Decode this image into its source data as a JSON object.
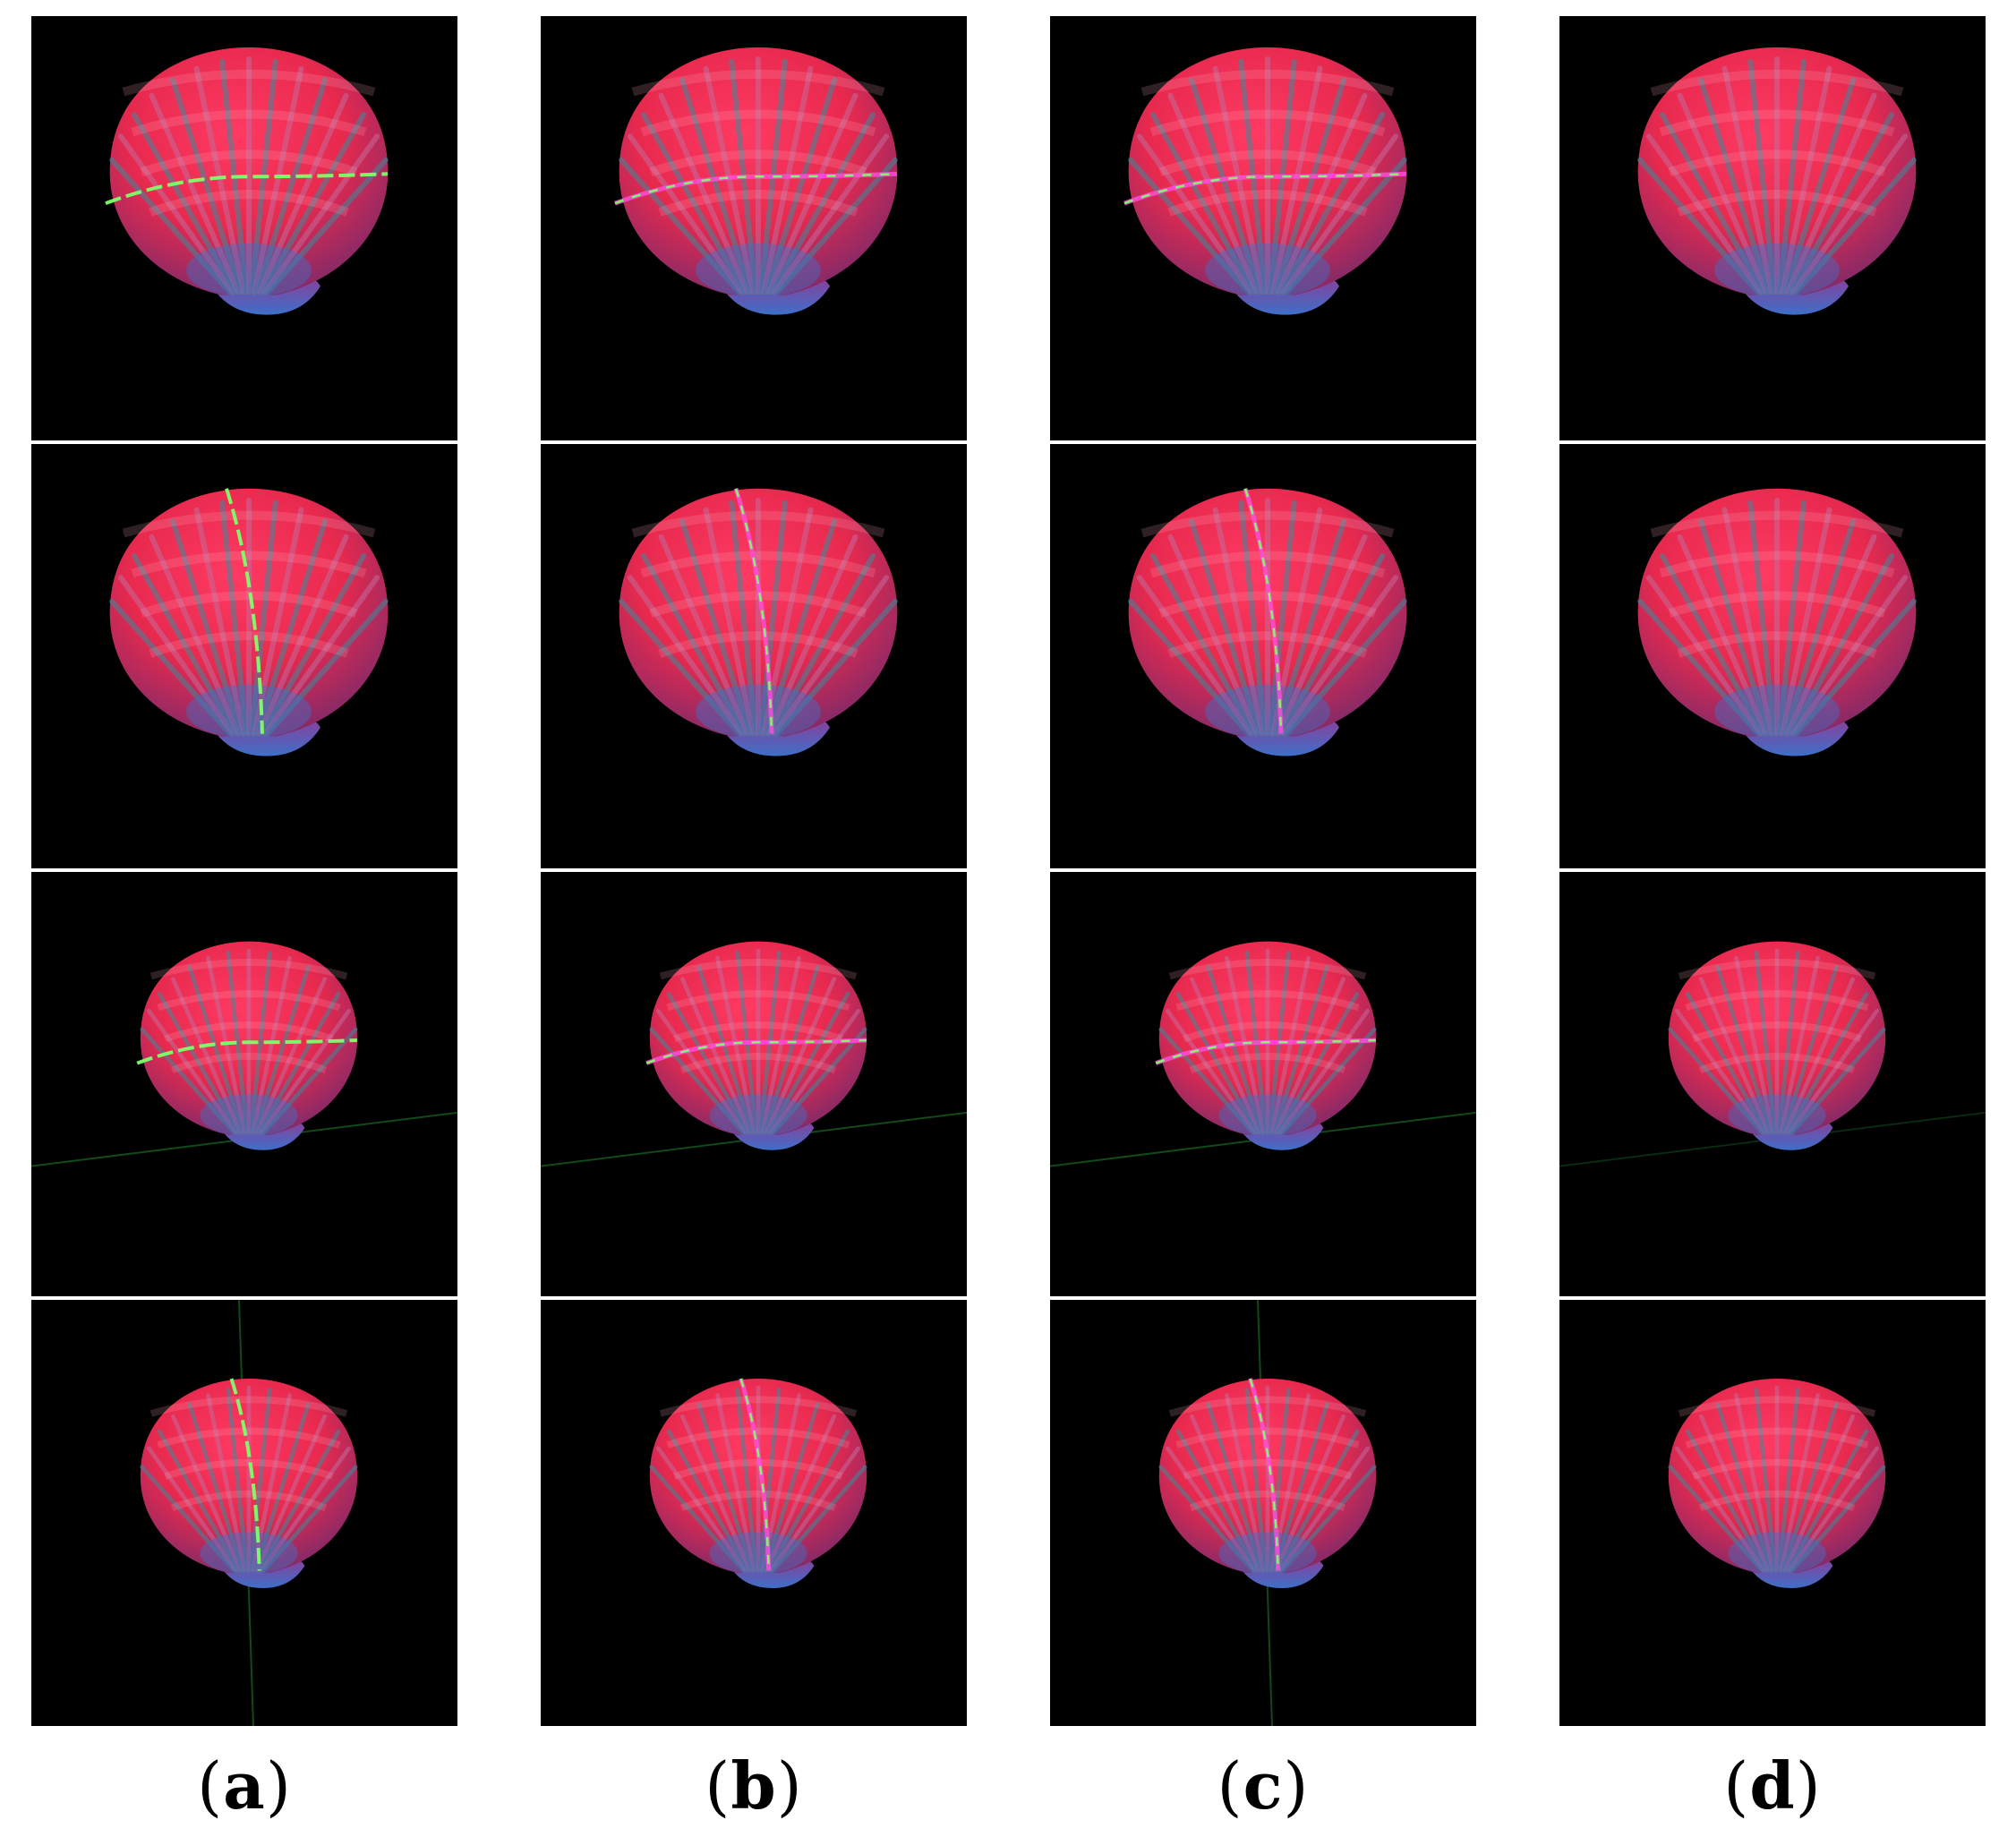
{
  "figure": {
    "panel_labels": [
      "a",
      "b",
      "c",
      "d"
    ],
    "label_open": "(",
    "label_close": ")",
    "colors": {
      "background": "#000000",
      "shell_red": "#e8294e",
      "rib_blue": "#3e6fc8",
      "laser_green": "#7dff6a",
      "laser_magenta": "#ff4fe0"
    },
    "columns": [
      {
        "id": "a",
        "laser": "green"
      },
      {
        "id": "b",
        "laser": "magenta-green"
      },
      {
        "id": "c",
        "laser": "magenta-green"
      },
      {
        "id": "d",
        "laser": "none"
      }
    ],
    "rows": [
      {
        "view": "horizontal-stripe-close"
      },
      {
        "view": "vertical-stripe-close"
      },
      {
        "view": "horizontal-stripe-far"
      },
      {
        "view": "vertical-stripe-far"
      }
    ]
  }
}
